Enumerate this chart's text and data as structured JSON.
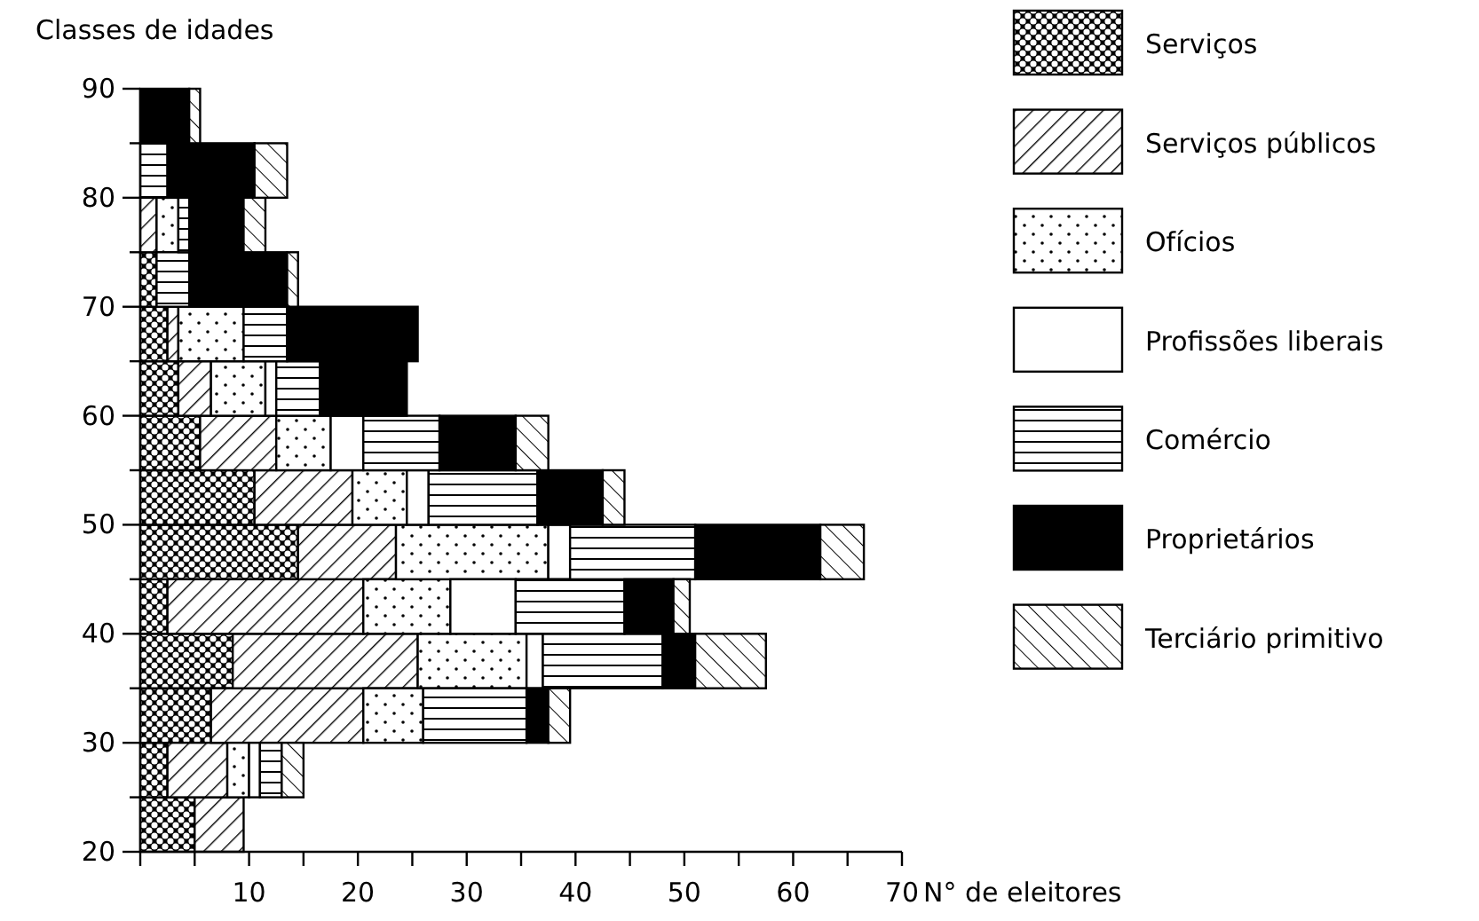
{
  "chart_data": {
    "type": "bar",
    "orientation": "horizontal",
    "stacked": true,
    "ylabel": "Classes de idades",
    "xlabel": "N° de eleitores",
    "x": [
      22.5,
      27.5,
      32.5,
      37.5,
      42.5,
      47.5,
      52.5,
      57.5,
      62.5,
      67.5,
      72.5,
      77.5,
      82.5,
      87.5
    ],
    "xlim": [
      0,
      70
    ],
    "xticks": [
      {
        "value": 0,
        "label": null
      },
      {
        "value": 5,
        "label": null
      },
      10,
      {
        "value": 15,
        "label": null
      },
      20,
      {
        "value": 25,
        "label": null
      },
      30,
      {
        "value": 35,
        "label": null
      },
      40,
      {
        "value": 45,
        "label": null
      },
      50,
      {
        "value": 55,
        "label": null
      },
      60,
      {
        "value": 65,
        "label": null
      },
      70
    ],
    "ylim": [
      20,
      90
    ],
    "yticks": [
      20,
      {
        "value": 25,
        "label": null
      },
      30,
      {
        "value": 35,
        "label": null
      },
      40,
      {
        "value": 45,
        "label": null
      },
      50,
      {
        "value": 55,
        "label": null
      },
      60,
      {
        "value": 65,
        "label": null
      },
      70,
      {
        "value": 75,
        "label": null
      },
      80,
      {
        "value": 85,
        "label": null
      },
      90
    ],
    "legend": "right",
    "series": [
      {
        "name": "Serviços",
        "color": "#000000",
        "values": [
          5,
          2.5,
          6.5,
          8.5,
          2.5,
          14.5,
          10.5,
          5.5,
          3.5,
          2.5,
          1.5,
          0,
          0,
          0
        ]
      },
      {
        "name": "Serviços públicos",
        "color": "#000000",
        "values": [
          4.5,
          5.5,
          14,
          17,
          18,
          9,
          9,
          7,
          3,
          1,
          0,
          1.5,
          0,
          0
        ]
      },
      {
        "name": "Ofícios",
        "color": "#000000",
        "values": [
          0,
          2,
          5.5,
          10,
          8,
          14,
          5,
          5,
          5,
          6,
          0,
          2,
          0,
          0
        ]
      },
      {
        "name": "Profissões liberais",
        "color": "#000000",
        "values": [
          0,
          1,
          0,
          1.5,
          6,
          2,
          2,
          3,
          1,
          0,
          0,
          0,
          0,
          0
        ]
      },
      {
        "name": "Comércio",
        "color": "#000000",
        "values": [
          0,
          2,
          9.5,
          11,
          10,
          11.5,
          10,
          7,
          4,
          4,
          3,
          1,
          2.5,
          0
        ]
      },
      {
        "name": "Proprietários",
        "color": "#000000",
        "values": [
          0,
          0,
          2,
          3,
          4.5,
          11.5,
          6,
          7,
          8,
          12,
          9,
          5,
          8,
          4.5
        ]
      },
      {
        "name": "Terciário primitivo",
        "color": "#000000",
        "values": [
          0,
          2,
          2,
          6.5,
          1.5,
          4,
          2,
          3,
          0,
          0,
          1,
          2,
          3,
          1
        ]
      }
    ]
  }
}
